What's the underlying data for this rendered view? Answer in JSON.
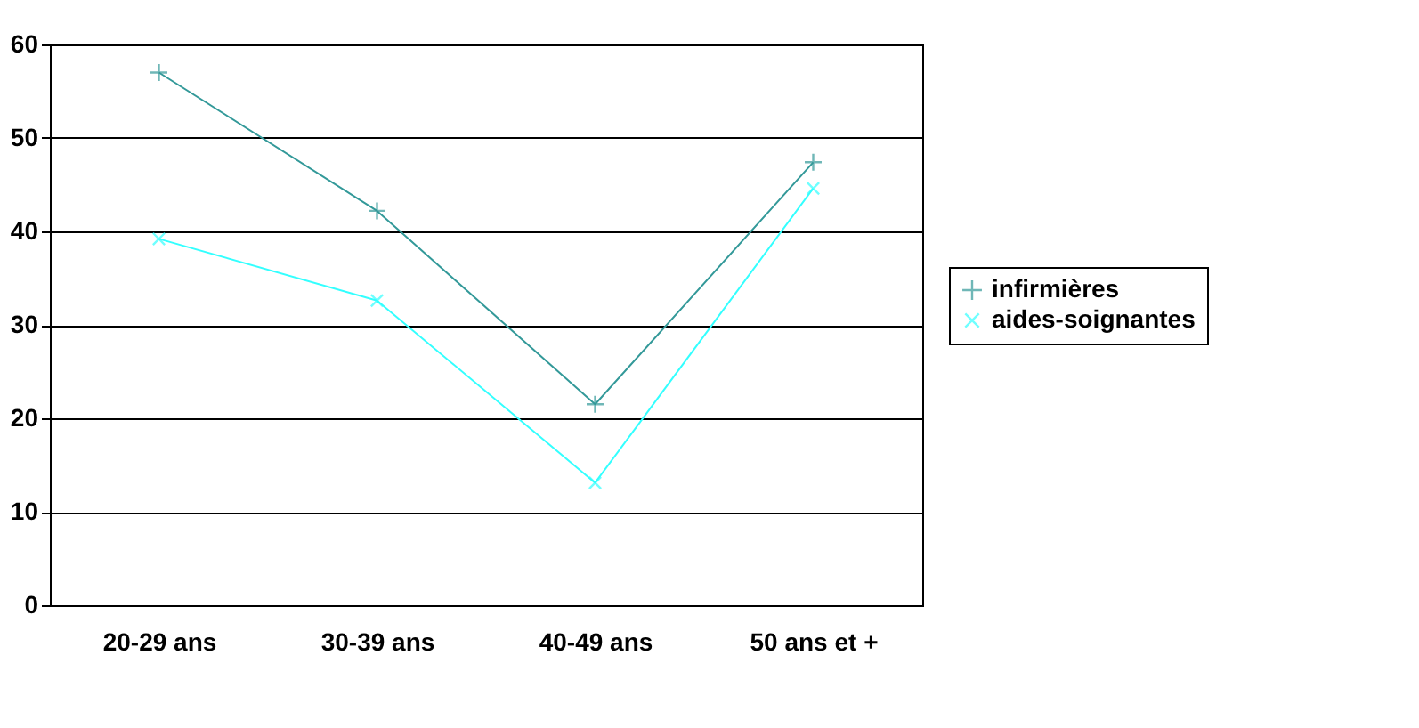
{
  "chart_data": {
    "type": "line",
    "categories": [
      "20-29 ans",
      "30-39 ans",
      "40-49 ans",
      "50 ans et +"
    ],
    "series": [
      {
        "name": "infirmières",
        "color": "#339999",
        "marker": "cross",
        "values": [
          57,
          42.2,
          21.5,
          47.4
        ]
      },
      {
        "name": "aides-soignantes",
        "color": "#33ffff",
        "marker": "x",
        "values": [
          39.2,
          32.6,
          13.1,
          44.6
        ]
      }
    ],
    "ylim": [
      0,
      60
    ],
    "yticks": [
      0,
      10,
      20,
      30,
      40,
      50,
      60
    ],
    "grid": "y",
    "legend": "right"
  }
}
